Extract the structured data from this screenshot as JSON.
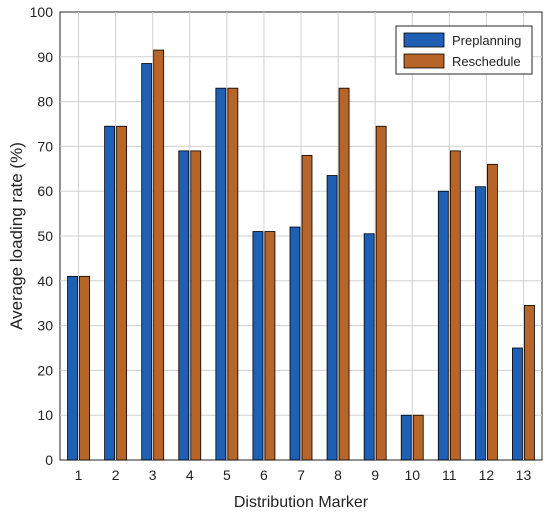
{
  "chart_data": {
    "type": "bar",
    "title": "",
    "xlabel": "Distribution Marker",
    "ylabel": "Average loading rate (%)",
    "ylim": [
      0,
      100
    ],
    "yticks": [
      "0",
      "10",
      "20",
      "30",
      "40",
      "50",
      "60",
      "70",
      "80",
      "90",
      "100"
    ],
    "categories": [
      "1",
      "2",
      "3",
      "4",
      "5",
      "6",
      "7",
      "8",
      "9",
      "10",
      "11",
      "12",
      "13"
    ],
    "grid": true,
    "legend_position": "top-right",
    "series": [
      {
        "name": "Preplanning",
        "color": "#1f5fb4",
        "values": [
          41,
          74.5,
          88.5,
          69,
          83,
          51,
          52,
          63.5,
          50.5,
          10,
          60,
          61,
          25
        ]
      },
      {
        "name": "Reschedule",
        "color": "#b8652a",
        "values": [
          41,
          74.5,
          91.5,
          69,
          83,
          51,
          68,
          83,
          74.5,
          10,
          69,
          66,
          34.5
        ]
      }
    ]
  }
}
